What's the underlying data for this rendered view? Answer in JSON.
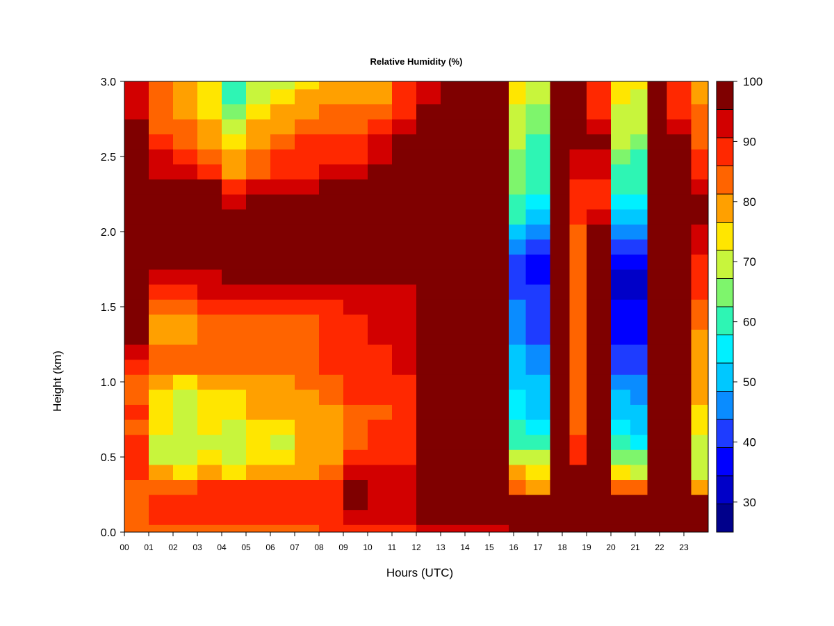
{
  "chart_data": {
    "type": "heatmap",
    "title": "Relative Humidity (%)",
    "xlabel": "Hours (UTC)",
    "ylabel": "Height (km)",
    "xlim": [
      0,
      24
    ],
    "ylim": [
      0.0,
      3.0
    ],
    "x_ticks": [
      "00",
      "01",
      "02",
      "03",
      "04",
      "05",
      "06",
      "07",
      "08",
      "09",
      "10",
      "11",
      "12",
      "13",
      "14",
      "15",
      "16",
      "17",
      "18",
      "19",
      "20",
      "21",
      "22",
      "23"
    ],
    "y_ticks": [
      "0.0",
      "0.5",
      "1.0",
      "1.5",
      "2.0",
      "2.5",
      "3.0"
    ],
    "y_tick_values": [
      0.0,
      0.5,
      1.0,
      1.5,
      2.0,
      2.5,
      3.0
    ],
    "colorbar": {
      "range": [
        25,
        100
      ],
      "labels": [
        "30",
        "40",
        "50",
        "60",
        "70",
        "80",
        "90",
        "100"
      ],
      "label_values": [
        30,
        40,
        50,
        60,
        70,
        80,
        90,
        100
      ],
      "levels": [
        {
          "min": 25,
          "max": 30,
          "color": "#00008b"
        },
        {
          "min": 30,
          "max": 35,
          "color": "#0000c8"
        },
        {
          "min": 35,
          "max": 40,
          "color": "#0000ff"
        },
        {
          "min": 40,
          "max": 45,
          "color": "#1e3cff"
        },
        {
          "min": 45,
          "max": 50,
          "color": "#0a8cff"
        },
        {
          "min": 50,
          "max": 55,
          "color": "#00c8ff"
        },
        {
          "min": 55,
          "max": 60,
          "color": "#00f0ff"
        },
        {
          "min": 60,
          "max": 65,
          "color": "#2ef5b4"
        },
        {
          "min": 65,
          "max": 70,
          "color": "#7ef56c"
        },
        {
          "min": 70,
          "max": 75,
          "color": "#c8f53c"
        },
        {
          "min": 75,
          "max": 80,
          "color": "#ffe600"
        },
        {
          "min": 80,
          "max": 85,
          "color": "#ffa000"
        },
        {
          "min": 85,
          "max": 90,
          "color": "#ff6400"
        },
        {
          "min": 90,
          "max": 95,
          "color": "#ff2800"
        },
        {
          "min": 95,
          "max": 100,
          "color": "#d20000"
        },
        {
          "min": 100,
          "max": 100,
          "color": "#7f0000"
        }
      ]
    },
    "heights_km": [
      0.0,
      0.1,
      0.2,
      0.3,
      0.4,
      0.5,
      0.6,
      0.7,
      0.8,
      0.9,
      1.0,
      1.1,
      1.2,
      1.3,
      1.4,
      1.5,
      1.6,
      1.7,
      1.8,
      1.9,
      2.0,
      2.1,
      2.2,
      2.3,
      2.4,
      2.5,
      2.6,
      2.7,
      2.8,
      2.9,
      3.0
    ],
    "hours_utc": [
      0,
      1,
      2,
      3,
      4,
      5,
      6,
      7,
      8,
      9,
      10,
      11,
      12,
      13,
      14,
      15,
      15.8,
      16.5,
      17.5,
      18.3,
      19,
      20,
      20.8,
      21.5,
      22.3,
      23.3
    ],
    "rh_percent": [
      [
        85,
        88,
        88,
        88,
        92,
        93,
        92,
        88,
        90,
        88,
        88,
        90,
        95,
        100,
        100,
        100,
        100,
        100,
        100,
        100,
        100,
        100,
        100,
        100,
        100,
        100,
        100,
        100,
        98,
        96,
        96
      ],
      [
        85,
        90,
        92,
        88,
        80,
        74,
        74,
        76,
        78,
        78,
        80,
        86,
        86,
        84,
        84,
        88,
        93,
        96,
        100,
        100,
        100,
        100,
        100,
        100,
        98,
        96,
        92,
        88,
        88,
        85,
        85
      ],
      [
        86,
        92,
        92,
        88,
        78,
        72,
        70,
        72,
        74,
        74,
        78,
        86,
        86,
        84,
        84,
        88,
        93,
        96,
        100,
        100,
        100,
        100,
        100,
        100,
        96,
        92,
        88,
        85,
        84,
        82,
        82
      ],
      [
        88,
        92,
        94,
        90,
        80,
        75,
        74,
        76,
        76,
        78,
        80,
        88,
        88,
        86,
        86,
        90,
        95,
        98,
        100,
        100,
        100,
        100,
        100,
        100,
        94,
        88,
        84,
        80,
        78,
        76,
        76
      ],
      [
        88,
        92,
        94,
        90,
        78,
        72,
        70,
        74,
        76,
        76,
        80,
        86,
        86,
        86,
        86,
        90,
        95,
        100,
        100,
        100,
        100,
        100,
        98,
        92,
        84,
        80,
        76,
        72,
        68,
        62,
        60
      ],
      [
        88,
        92,
        92,
        90,
        80,
        76,
        75,
        78,
        80,
        80,
        82,
        88,
        88,
        86,
        86,
        90,
        95,
        100,
        100,
        100,
        100,
        100,
        100,
        95,
        88,
        86,
        82,
        80,
        78,
        72,
        70
      ],
      [
        88,
        92,
        92,
        90,
        80,
        76,
        74,
        78,
        80,
        82,
        84,
        88,
        88,
        86,
        86,
        90,
        95,
        100,
        100,
        100,
        100,
        100,
        100,
        96,
        92,
        90,
        86,
        84,
        80,
        76,
        74
      ],
      [
        88,
        92,
        92,
        90,
        82,
        80,
        80,
        82,
        84,
        84,
        86,
        88,
        88,
        88,
        88,
        90,
        95,
        100,
        100,
        100,
        100,
        100,
        100,
        98,
        94,
        92,
        90,
        86,
        84,
        80,
        78
      ],
      [
        90,
        93,
        93,
        92,
        86,
        84,
        82,
        84,
        84,
        86,
        88,
        90,
        90,
        90,
        90,
        92,
        96,
        100,
        100,
        100,
        100,
        100,
        100,
        100,
        96,
        92,
        90,
        86,
        86,
        84,
        82
      ],
      [
        92,
        95,
        100,
        100,
        96,
        90,
        88,
        88,
        88,
        90,
        92,
        94,
        94,
        94,
        94,
        95,
        98,
        100,
        100,
        100,
        100,
        100,
        100,
        100,
        96,
        92,
        90,
        88,
        86,
        84,
        82
      ],
      [
        92,
        95,
        98,
        98,
        96,
        92,
        90,
        90,
        88,
        90,
        92,
        94,
        94,
        96,
        96,
        96,
        98,
        100,
        100,
        100,
        100,
        100,
        100,
        100,
        100,
        98,
        96,
        92,
        88,
        84,
        80
      ],
      [
        94,
        96,
        98,
        98,
        96,
        94,
        92,
        92,
        90,
        92,
        94,
        96,
        96,
        96,
        96,
        96,
        98,
        100,
        100,
        100,
        100,
        100,
        100,
        100,
        100,
        100,
        100,
        96,
        94,
        92,
        92
      ],
      [
        95,
        100,
        100,
        100,
        100,
        100,
        100,
        100,
        100,
        100,
        100,
        100,
        100,
        100,
        100,
        100,
        100,
        100,
        100,
        100,
        100,
        100,
        100,
        100,
        100,
        100,
        100,
        100,
        100,
        98,
        96
      ],
      [
        95,
        100,
        100,
        100,
        100,
        100,
        100,
        100,
        100,
        100,
        100,
        100,
        100,
        100,
        100,
        100,
        100,
        100,
        100,
        100,
        100,
        100,
        100,
        100,
        100,
        100,
        100,
        100,
        100,
        100,
        100
      ],
      [
        95,
        100,
        100,
        100,
        100,
        100,
        100,
        100,
        100,
        100,
        100,
        100,
        100,
        100,
        100,
        100,
        100,
        100,
        100,
        100,
        100,
        100,
        100,
        100,
        100,
        100,
        100,
        100,
        100,
        100,
        100
      ],
      [
        95,
        100,
        100,
        100,
        100,
        100,
        100,
        100,
        100,
        100,
        100,
        100,
        100,
        100,
        100,
        100,
        100,
        100,
        100,
        100,
        100,
        100,
        100,
        100,
        100,
        100,
        100,
        100,
        100,
        100,
        100
      ],
      [
        100,
        100,
        100,
        86,
        80,
        72,
        64,
        60,
        58,
        56,
        54,
        52,
        50,
        48,
        46,
        46,
        44,
        44,
        44,
        46,
        52,
        60,
        64,
        66,
        66,
        68,
        70,
        72,
        74,
        76,
        76
      ],
      [
        100,
        100,
        100,
        84,
        78,
        70,
        62,
        58,
        54,
        52,
        50,
        48,
        46,
        44,
        42,
        42,
        40,
        38,
        38,
        40,
        46,
        54,
        58,
        60,
        60,
        62,
        64,
        66,
        68,
        70,
        72
      ],
      [
        100,
        100,
        100,
        100,
        100,
        100,
        100,
        100,
        100,
        100,
        100,
        100,
        100,
        100,
        100,
        100,
        100,
        100,
        100,
        100,
        100,
        100,
        100,
        100,
        100,
        100,
        100,
        100,
        100,
        100,
        100
      ],
      [
        100,
        100,
        100,
        100,
        100,
        94,
        90,
        88,
        88,
        86,
        86,
        86,
        86,
        86,
        86,
        86,
        86,
        86,
        86,
        86,
        88,
        90,
        92,
        94,
        96,
        98,
        100,
        100,
        100,
        100,
        100
      ],
      [
        100,
        100,
        100,
        100,
        100,
        100,
        100,
        100,
        100,
        100,
        100,
        100,
        100,
        100,
        100,
        100,
        100,
        100,
        100,
        100,
        100,
        96,
        94,
        94,
        96,
        98,
        100,
        96,
        92,
        90,
        90
      ],
      [
        100,
        100,
        100,
        86,
        76,
        68,
        60,
        56,
        52,
        50,
        46,
        42,
        40,
        38,
        36,
        36,
        34,
        34,
        36,
        40,
        46,
        52,
        58,
        62,
        64,
        66,
        70,
        72,
        74,
        76,
        78
      ],
      [
        100,
        100,
        100,
        86,
        74,
        66,
        58,
        54,
        50,
        48,
        46,
        42,
        40,
        38,
        36,
        36,
        34,
        34,
        36,
        40,
        46,
        52,
        58,
        60,
        62,
        64,
        68,
        70,
        72,
        74,
        76
      ],
      [
        100,
        100,
        100,
        100,
        100,
        100,
        100,
        100,
        100,
        100,
        100,
        100,
        100,
        100,
        100,
        100,
        100,
        100,
        100,
        100,
        100,
        100,
        100,
        100,
        100,
        100,
        100,
        100,
        100,
        100,
        100
      ],
      [
        100,
        100,
        100,
        100,
        100,
        100,
        100,
        100,
        100,
        100,
        100,
        100,
        100,
        100,
        100,
        100,
        100,
        100,
        100,
        100,
        100,
        100,
        100,
        100,
        100,
        100,
        100,
        96,
        94,
        92,
        90
      ],
      [
        100,
        100,
        100,
        80,
        74,
        72,
        74,
        76,
        78,
        80,
        82,
        82,
        84,
        84,
        86,
        88,
        90,
        92,
        94,
        96,
        98,
        100,
        100,
        96,
        92,
        90,
        88,
        88,
        86,
        84,
        84
      ]
    ]
  }
}
